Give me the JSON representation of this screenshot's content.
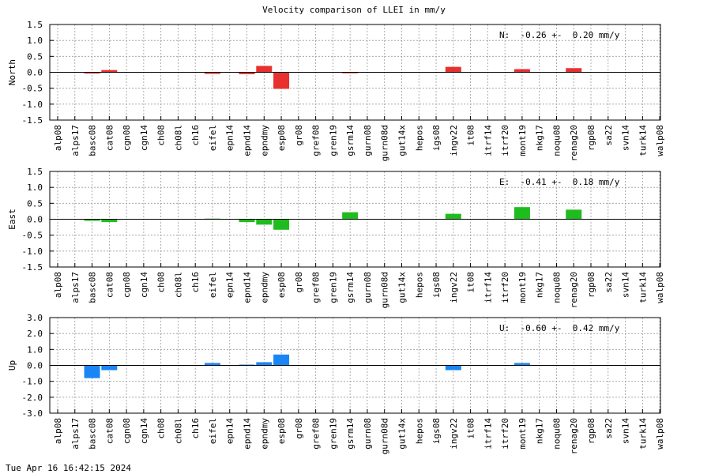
{
  "title": "Velocity comparison of LLEI in mm/y",
  "timestamp": "Tue Apr 16 16:42:15 2024",
  "chart_data": [
    {
      "type": "bar",
      "ylabel": "North",
      "ylim": [
        -1.5,
        1.5
      ],
      "yticks": [
        "1.5",
        "1.0",
        "0.5",
        "0.0",
        "-0.5",
        "-1.0",
        "-1.5"
      ],
      "grid": true,
      "color": "#e8302f",
      "stat": "N:  -0.26 +-  0.20 mm/y",
      "categories": [
        "alp08",
        "alps17",
        "basc08",
        "cat08",
        "cgn08",
        "cgn14",
        "ch08",
        "ch08l",
        "ch16",
        "eifel",
        "epn14",
        "epnd14",
        "epndmy",
        "esp08",
        "gr08",
        "gref08",
        "gren19",
        "gsrm14",
        "gurn08",
        "gurn08d",
        "gut14x",
        "hepos",
        "igs08",
        "ingv22",
        "it08",
        "itrf14",
        "itrf20",
        "mont19",
        "nkg17",
        "noqu08",
        "renag20",
        "rgp08",
        "sa22",
        "svn14",
        "turk14",
        "walp08"
      ],
      "values": [
        0,
        0,
        -0.04,
        0.07,
        0,
        0,
        0,
        0,
        0,
        -0.05,
        0,
        -0.06,
        0.2,
        -0.52,
        0,
        0,
        0,
        -0.03,
        0,
        0,
        0,
        0,
        0,
        0.17,
        0,
        0,
        0,
        0.1,
        0,
        0,
        0.13,
        0,
        0,
        0,
        0,
        0
      ]
    },
    {
      "type": "bar",
      "ylabel": "East",
      "ylim": [
        -1.5,
        1.5
      ],
      "yticks": [
        "1.5",
        "1.0",
        "0.5",
        "0.0",
        "-0.5",
        "-1.0",
        "-1.5"
      ],
      "grid": true,
      "color": "#1fbc1f",
      "stat": "E:  -0.41 +-  0.18 mm/y",
      "categories": [
        "alp08",
        "alps17",
        "basc08",
        "cat08",
        "cgn08",
        "cgn14",
        "ch08",
        "ch08l",
        "ch16",
        "eifel",
        "epn14",
        "epnd14",
        "epndmy",
        "esp08",
        "gr08",
        "gref08",
        "gren19",
        "gsrm14",
        "gurn08",
        "gurn08d",
        "gut14x",
        "hepos",
        "igs08",
        "ingv22",
        "it08",
        "itrf14",
        "itrf20",
        "mont19",
        "nkg17",
        "noqu08",
        "renag20",
        "rgp08",
        "sa22",
        "svn14",
        "turk14",
        "walp08"
      ],
      "values": [
        0,
        0,
        -0.05,
        -0.09,
        0,
        0,
        0,
        0,
        0,
        0.02,
        0,
        -0.09,
        -0.17,
        -0.33,
        0,
        0,
        0,
        0.22,
        0,
        0,
        0,
        0,
        0,
        0.17,
        0,
        0,
        0,
        0.38,
        0,
        0,
        0.3,
        0,
        0,
        0,
        0,
        0
      ]
    },
    {
      "type": "bar",
      "ylabel": "Up",
      "ylim": [
        -3.0,
        3.0
      ],
      "yticks": [
        "3.0",
        "2.0",
        "1.0",
        "0.0",
        "-1.0",
        "-2.0",
        "-3.0"
      ],
      "grid": true,
      "color": "#1a86f5",
      "stat": "U:  -0.60 +-  0.42 mm/y",
      "categories": [
        "alp08",
        "alps17",
        "basc08",
        "cat08",
        "cgn08",
        "cgn14",
        "ch08",
        "ch08l",
        "ch16",
        "eifel",
        "epn14",
        "epnd14",
        "epndmy",
        "esp08",
        "gr08",
        "gref08",
        "gren19",
        "gsrm14",
        "gurn08",
        "gurn08d",
        "gut14x",
        "hepos",
        "igs08",
        "ingv22",
        "it08",
        "itrf14",
        "itrf20",
        "mont19",
        "nkg17",
        "noqu08",
        "renag20",
        "rgp08",
        "sa22",
        "svn14",
        "turk14",
        "walp08"
      ],
      "values": [
        0,
        0,
        -0.8,
        -0.3,
        0,
        0,
        0,
        0,
        0,
        0.15,
        0,
        0.05,
        0.2,
        0.68,
        0,
        0,
        0,
        0,
        0,
        0,
        0,
        0,
        0,
        -0.3,
        0,
        0,
        0,
        0.15,
        0,
        0,
        0,
        0,
        0,
        0,
        0,
        0
      ]
    }
  ]
}
